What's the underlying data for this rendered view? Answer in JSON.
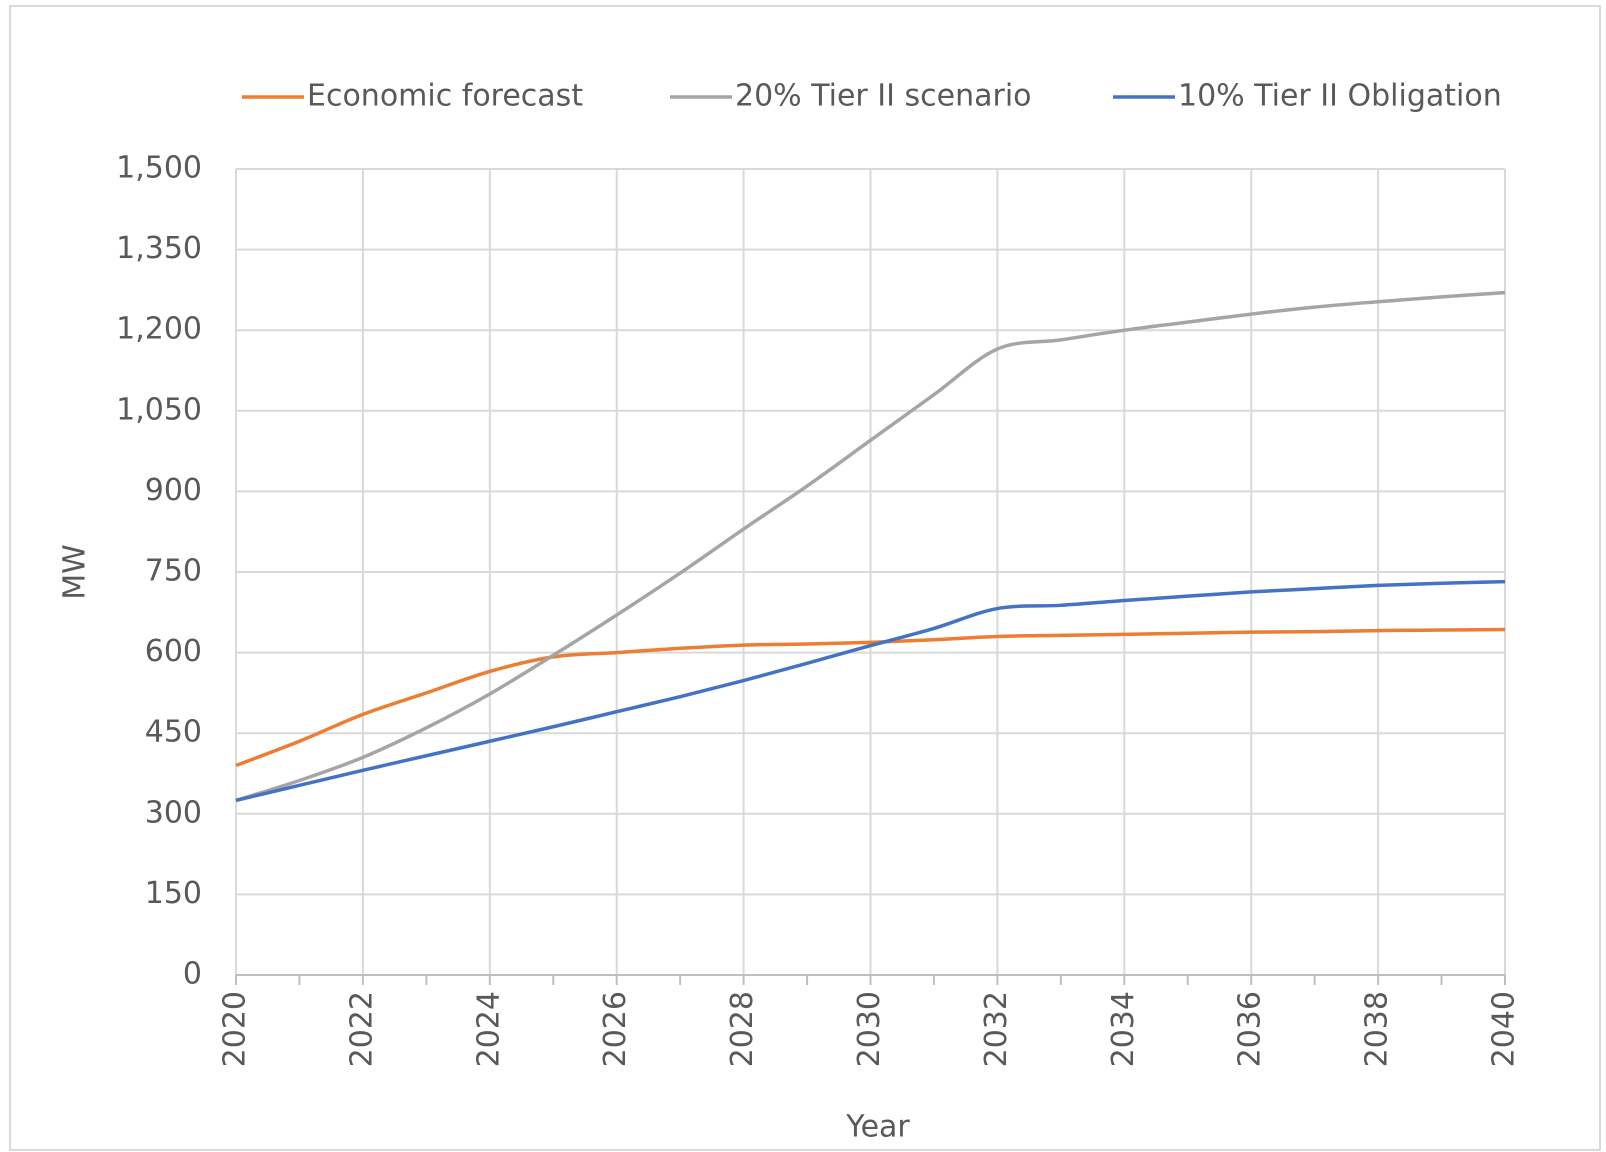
{
  "chart_data": {
    "type": "line",
    "x": [
      2020,
      2021,
      2022,
      2023,
      2024,
      2025,
      2026,
      2027,
      2028,
      2029,
      2030,
      2031,
      2032,
      2033,
      2034,
      2035,
      2036,
      2037,
      2038,
      2039,
      2040
    ],
    "series": [
      {
        "name": "Economic forecast",
        "color": "#ed7d31",
        "values": [
          390,
          435,
          485,
          525,
          565,
          592,
          600,
          608,
          614,
          616,
          619,
          624,
          630,
          632,
          634,
          636,
          638,
          639,
          641,
          642,
          643
        ]
      },
      {
        "name": "20% Tier II scenario",
        "color": "#a5a5a5",
        "values": [
          325,
          362,
          405,
          460,
          523,
          595,
          670,
          748,
          830,
          910,
          995,
          1080,
          1165,
          1182,
          1200,
          1215,
          1230,
          1243,
          1253,
          1262,
          1270
        ]
      },
      {
        "name": "10% Tier II Obligation",
        "color": "#4472c4",
        "values": [
          325,
          353,
          381,
          408,
          435,
          462,
          490,
          518,
          548,
          580,
          613,
          645,
          682,
          688,
          697,
          705,
          713,
          719,
          725,
          729,
          732
        ]
      }
    ],
    "xlabel": "Year",
    "ylabel": "MW",
    "xlim": [
      2020,
      2040
    ],
    "xticks": [
      2020,
      2022,
      2024,
      2026,
      2028,
      2030,
      2032,
      2034,
      2036,
      2038,
      2040
    ],
    "ylim": [
      0,
      1500
    ],
    "yticks": [
      0,
      150,
      300,
      450,
      600,
      750,
      900,
      {
        "value": 1050,
        "label": "1,050"
      },
      {
        "value": 1200,
        "label": "1,200"
      },
      {
        "value": 1350,
        "label": "1,350"
      },
      {
        "value": 1500,
        "label": "1,500"
      }
    ],
    "grid": true,
    "legend": "top"
  }
}
